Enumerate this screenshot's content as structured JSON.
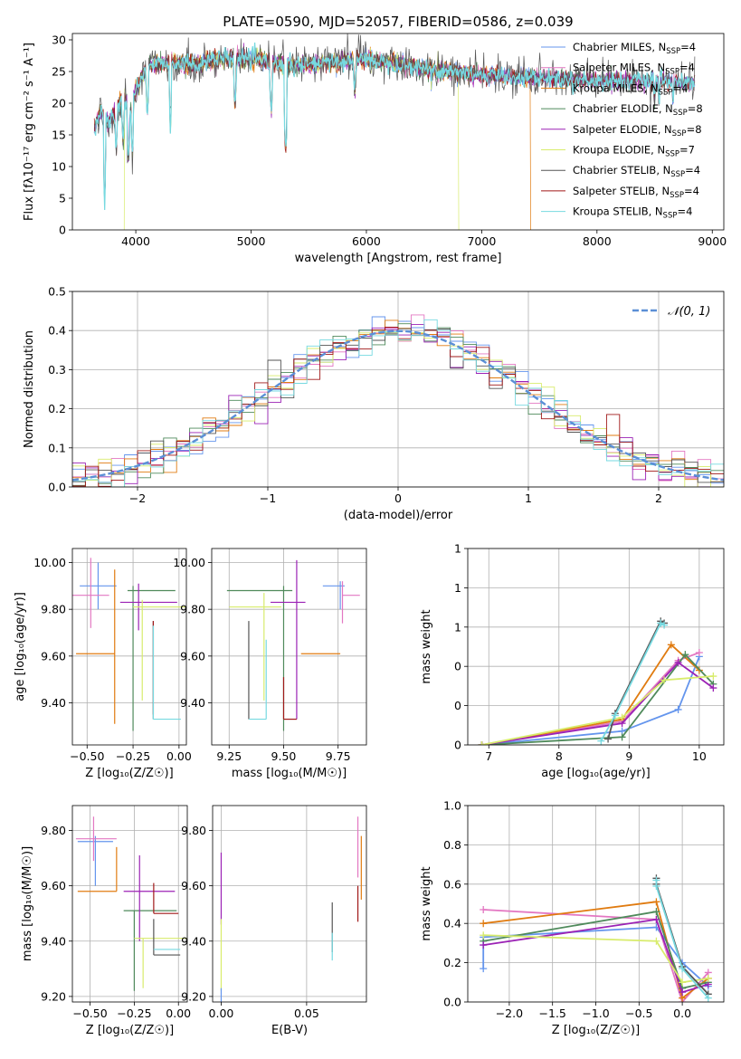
{
  "colors": {
    "chabrier_miles": "#6495ed",
    "salpeter_miles": "#e377c2",
    "kroupa_miles": "#e07b10",
    "chabrier_elodie": "#4f8a5b",
    "salpeter_elodie": "#9b22b5",
    "kroupa_elodie": "#d8ec6c",
    "chabrier_stelib": "#555555",
    "salpeter_stelib": "#a01818",
    "kroupa_stelib": "#76d9e0"
  },
  "chart_data": [
    {
      "type": "line",
      "title": "PLATE=0590, MJD=52057, FIBERID=0586, z=0.039",
      "xlabel": "wavelength [Angstrom, rest frame]",
      "ylabel": "Flux [fλ10⁻¹⁷ erg cm⁻² s⁻¹ A⁻¹]",
      "xlim": [
        3450,
        9100
      ],
      "ylim": [
        0,
        31
      ],
      "xticks": [
        4000,
        5000,
        6000,
        7000,
        8000,
        9000
      ],
      "yticks": [
        0,
        5,
        10,
        15,
        20,
        25,
        30
      ],
      "legend": "right",
      "legend_entries": [
        {
          "label": "Chabrier MILES, N",
          "sub": "SSP",
          "tail": "=4",
          "color_key": "chabrier_miles"
        },
        {
          "label": "Salpeter MILES, N",
          "sub": "SSP",
          "tail": "=4",
          "color_key": "salpeter_miles"
        },
        {
          "label": "Kroupa MILES, N",
          "sub": "SSP",
          "tail": "=4",
          "color_key": "kroupa_miles"
        },
        {
          "label": "Chabrier ELODIE, N",
          "sub": "SSP",
          "tail": "=8",
          "color_key": "chabrier_elodie"
        },
        {
          "label": "Salpeter ELODIE, N",
          "sub": "SSP",
          "tail": "=8",
          "color_key": "salpeter_elodie"
        },
        {
          "label": "Kroupa ELODIE, N",
          "sub": "SSP",
          "tail": "=7",
          "color_key": "kroupa_elodie"
        },
        {
          "label": "Chabrier STELIB, N",
          "sub": "SSP",
          "tail": "=4",
          "color_key": "chabrier_stelib"
        },
        {
          "label": "Salpeter STELIB, N",
          "sub": "SSP",
          "tail": "=4",
          "color_key": "salpeter_stelib"
        },
        {
          "label": "Kroupa STELIB, N",
          "sub": "SSP",
          "tail": "=4",
          "color_key": "kroupa_stelib"
        }
      ],
      "spectrum_anchors": [
        [
          3650,
          16
        ],
        [
          3700,
          19
        ],
        [
          3750,
          17
        ],
        [
          3800,
          18
        ],
        [
          3900,
          21
        ],
        [
          3950,
          19
        ],
        [
          4000,
          22
        ],
        [
          4100,
          26
        ],
        [
          4300,
          26.5
        ],
        [
          4500,
          26
        ],
        [
          4700,
          27
        ],
        [
          5000,
          27
        ],
        [
          5300,
          26
        ],
        [
          5500,
          26
        ],
        [
          6000,
          27
        ],
        [
          6500,
          25.5
        ],
        [
          7000,
          24.5
        ],
        [
          7500,
          24
        ],
        [
          8000,
          23.5
        ],
        [
          8500,
          23.5
        ],
        [
          8850,
          23
        ]
      ],
      "dips": [
        [
          3730,
          5
        ],
        [
          3830,
          12
        ],
        [
          3890,
          13
        ],
        [
          3935,
          11
        ],
        [
          3970,
          12
        ],
        [
          4100,
          18
        ],
        [
          4300,
          16
        ],
        [
          4860,
          19
        ],
        [
          5175,
          18
        ],
        [
          5300,
          12
        ],
        [
          5900,
          21
        ],
        [
          6563,
          23
        ],
        [
          8500,
          20
        ],
        [
          8540,
          20
        ],
        [
          8660,
          20
        ]
      ],
      "model_cutoffs": [
        {
          "color_key": "kroupa_elodie",
          "start": 3900,
          "end": 6800
        },
        {
          "color_key": "kroupa_miles",
          "start": 3540,
          "end": 7420
        }
      ]
    },
    {
      "type": "histogram",
      "xlabel": "(data-model)/error",
      "ylabel": "Normed distribution",
      "xlim": [
        -2.5,
        2.5
      ],
      "ylim": [
        0,
        0.5
      ],
      "xticks": [
        -2,
        -1,
        0,
        1,
        2
      ],
      "yticks": [
        0.0,
        0.1,
        0.2,
        0.3,
        0.4,
        0.5
      ],
      "bin_width": 0.1,
      "legend": "top-right",
      "gaussian_label": "𝒩(0, 1)",
      "gaussian_color": "#5b8fd6"
    },
    {
      "type": "scatter",
      "panel": "age-vs-Z",
      "xlabel": "Z [log₁₀(Z/Z☉)]",
      "ylabel": "age  [log₁₀(age/yr)]",
      "xlim": [
        -0.58,
        0.04
      ],
      "ylim": [
        9.22,
        10.06
      ],
      "xticks": [
        -0.5,
        -0.25,
        0.0
      ],
      "yticks": [
        9.4,
        9.6,
        9.8,
        10.0
      ],
      "points": [
        {
          "color_key": "chabrier_miles",
          "x": -0.44,
          "xerr": [
            0.1,
            0.1
          ],
          "y": 9.9,
          "yerr": [
            0.1,
            0.1
          ]
        },
        {
          "color_key": "salpeter_miles",
          "x": -0.48,
          "xerr": [
            0.1,
            0.1
          ],
          "y": 9.86,
          "yerr": [
            0.14,
            0.16
          ]
        },
        {
          "color_key": "kroupa_miles",
          "x": -0.35,
          "xerr": [
            0.21,
            0.0
          ],
          "y": 9.61,
          "yerr": [
            0.3,
            0.36
          ]
        },
        {
          "color_key": "chabrier_elodie",
          "x": -0.25,
          "xerr": [
            0.03,
            0.23
          ],
          "y": 9.88,
          "yerr": [
            0.6,
            0.02
          ]
        },
        {
          "color_key": "salpeter_elodie",
          "x": -0.22,
          "xerr": [
            0.1,
            0.21
          ],
          "y": 9.83,
          "yerr": [
            0.12,
            0.08
          ]
        },
        {
          "color_key": "kroupa_elodie",
          "x": -0.2,
          "xerr": [
            0.05,
            0.25
          ],
          "y": 9.81,
          "yerr": [
            0.4,
            0.03
          ]
        },
        {
          "color_key": "chabrier_stelib",
          "x": -0.14,
          "xerr": [
            0.0,
            0.0
          ],
          "y": 9.55,
          "yerr": [
            0.22,
            0.2
          ]
        },
        {
          "color_key": "salpeter_stelib",
          "x": -0.14,
          "xerr": [
            0.0,
            0.0
          ],
          "y": 9.55,
          "yerr": [
            0.2,
            0.2
          ]
        },
        {
          "color_key": "kroupa_stelib",
          "x": -0.14,
          "xerr": [
            0.0,
            0.15
          ],
          "y": 9.33,
          "yerr": [
            0.0,
            0.4
          ]
        }
      ]
    },
    {
      "type": "scatter",
      "panel": "age-vs-mass",
      "xlabel": "mass [log₁₀(M/M☉)]",
      "ylabel": "",
      "xlim": [
        9.17,
        9.88
      ],
      "ylim": [
        9.22,
        10.06
      ],
      "xticks": [
        9.25,
        9.5,
        9.75
      ],
      "yticks": [
        9.4,
        9.6,
        9.8,
        10.0
      ],
      "points": [
        {
          "color_key": "chabrier_miles",
          "x": 9.76,
          "xerr": [
            0.08,
            0.02
          ],
          "y": 9.9,
          "yerr": [
            0.1,
            0.02
          ]
        },
        {
          "color_key": "salpeter_miles",
          "x": 9.77,
          "xerr": [
            0.0,
            0.08
          ],
          "y": 9.86,
          "yerr": [
            0.12,
            0.06
          ]
        },
        {
          "color_key": "kroupa_miles",
          "x": 9.6,
          "xerr": [
            0.02,
            0.16
          ],
          "y": 9.61,
          "yerr": [
            0.0,
            0.0
          ]
        },
        {
          "color_key": "chabrier_elodie",
          "x": 9.5,
          "xerr": [
            0.26,
            0.04
          ],
          "y": 9.88,
          "yerr": [
            0.6,
            0.02
          ]
        },
        {
          "color_key": "salpeter_elodie",
          "x": 9.56,
          "xerr": [
            0.12,
            0.04
          ],
          "y": 9.83,
          "yerr": [
            0.5,
            0.18
          ]
        },
        {
          "color_key": "kroupa_elodie",
          "x": 9.41,
          "xerr": [
            0.16,
            0.08
          ],
          "y": 9.81,
          "yerr": [
            0.4,
            0.06
          ]
        },
        {
          "color_key": "chabrier_stelib",
          "x": 9.34,
          "xerr": [
            0.0,
            0.0
          ],
          "y": 9.55,
          "yerr": [
            0.22,
            0.2
          ]
        },
        {
          "color_key": "salpeter_stelib",
          "x": 9.5,
          "xerr": [
            0.0,
            0.06
          ],
          "y": 9.33,
          "yerr": [
            0.0,
            0.18
          ]
        },
        {
          "color_key": "kroupa_stelib",
          "x": 9.42,
          "xerr": [
            0.08,
            0.0
          ],
          "y": 9.33,
          "yerr": [
            0.0,
            0.34
          ]
        }
      ]
    },
    {
      "type": "line",
      "panel": "mass-weight-vs-age",
      "xlabel": "age  [log₁₀(age/yr)]",
      "ylabel": "mass weight",
      "xlim": [
        6.7,
        10.35
      ],
      "ylim": [
        0,
        1.0
      ],
      "xticks": [
        7,
        8,
        9,
        10
      ],
      "yticks": [
        0.0,
        0.2,
        0.4,
        0.6,
        0.8,
        1.0
      ],
      "series": [
        {
          "color_key": "chabrier_miles",
          "x": [
            6.9,
            8.9,
            9.7,
            10.0
          ],
          "y": [
            0.0,
            0.07,
            0.18,
            0.45
          ]
        },
        {
          "color_key": "salpeter_miles",
          "x": [
            6.9,
            8.9,
            9.7,
            10.0
          ],
          "y": [
            0.0,
            0.12,
            0.43,
            0.47
          ]
        },
        {
          "color_key": "kroupa_miles",
          "x": [
            6.9,
            8.9,
            9.6,
            10.0
          ],
          "y": [
            0.0,
            0.13,
            0.51,
            0.38
          ]
        },
        {
          "color_key": "chabrier_elodie",
          "x": [
            6.9,
            8.9,
            9.8,
            10.2
          ],
          "y": [
            0.0,
            0.04,
            0.46,
            0.31
          ]
        },
        {
          "color_key": "salpeter_elodie",
          "x": [
            6.9,
            8.9,
            9.7,
            10.2
          ],
          "y": [
            0.0,
            0.11,
            0.42,
            0.29
          ]
        },
        {
          "color_key": "kroupa_elodie",
          "x": [
            6.9,
            8.9,
            9.5,
            10.2
          ],
          "y": [
            0.0,
            0.14,
            0.33,
            0.35
          ]
        },
        {
          "color_key": "chabrier_stelib",
          "x": [
            8.7,
            8.8,
            9.45,
            9.5
          ],
          "y": [
            0.03,
            0.16,
            0.63,
            0.62
          ]
        },
        {
          "color_key": "kroupa_stelib",
          "x": [
            8.6,
            8.8,
            9.45,
            9.5
          ],
          "y": [
            0.02,
            0.15,
            0.62,
            0.61
          ]
        }
      ]
    },
    {
      "type": "scatter",
      "panel": "mass-vs-Z",
      "xlabel": "Z [log₁₀(Z/Z☉)]",
      "ylabel": "mass [log₁₀(M/M☉)]",
      "xlim": [
        -0.6,
        0.05
      ],
      "ylim": [
        9.18,
        9.89
      ],
      "xticks": [
        -0.5,
        -0.25,
        0.0
      ],
      "yticks": [
        9.2,
        9.4,
        9.6,
        9.8
      ],
      "points": [
        {
          "color_key": "chabrier_miles",
          "x": -0.47,
          "xerr": [
            0.1,
            0.1
          ],
          "y": 9.76,
          "yerr": [
            0.16,
            0.02
          ]
        },
        {
          "color_key": "salpeter_miles",
          "x": -0.48,
          "xerr": [
            0.1,
            0.13
          ],
          "y": 9.77,
          "yerr": [
            0.08,
            0.08
          ]
        },
        {
          "color_key": "kroupa_miles",
          "x": -0.35,
          "xerr": [
            0.22,
            0.0
          ],
          "y": 9.58,
          "yerr": [
            0.0,
            0.16
          ]
        },
        {
          "color_key": "chabrier_elodie",
          "x": -0.25,
          "xerr": [
            0.06,
            0.24
          ],
          "y": 9.51,
          "yerr": [
            0.29,
            0.0
          ]
        },
        {
          "color_key": "salpeter_elodie",
          "x": -0.22,
          "xerr": [
            0.09,
            0.2
          ],
          "y": 9.58,
          "yerr": [
            0.18,
            0.13
          ]
        },
        {
          "color_key": "kroupa_elodie",
          "x": -0.2,
          "xerr": [
            0.05,
            0.25
          ],
          "y": 9.41,
          "yerr": [
            0.18,
            0.0
          ]
        },
        {
          "color_key": "chabrier_stelib",
          "x": -0.14,
          "xerr": [
            0.0,
            0.15
          ],
          "y": 9.35,
          "yerr": [
            0.0,
            0.13
          ]
        },
        {
          "color_key": "salpeter_stelib",
          "x": -0.14,
          "xerr": [
            0.0,
            0.14
          ],
          "y": 9.5,
          "yerr": [
            0.0,
            0.11
          ]
        },
        {
          "color_key": "kroupa_stelib",
          "x": -0.14,
          "xerr": [
            0.0,
            0.15
          ],
          "y": 9.37,
          "yerr": [
            0.0,
            0.0
          ]
        }
      ]
    },
    {
      "type": "scatter",
      "panel": "mass-vs-EBV",
      "xlabel": "E(B-V)",
      "ylabel": "",
      "xlim": [
        -0.005,
        0.085
      ],
      "ylim": [
        9.18,
        9.89
      ],
      "xticks": [
        0.0,
        0.05
      ],
      "yticks": [
        9.2,
        9.4,
        9.6,
        9.8
      ],
      "points": [
        {
          "color_key": "salpeter_elodie",
          "x": 0.0,
          "xerr": [
            0.0,
            0.0
          ],
          "y": 9.56,
          "yerr": [
            0.1,
            0.16
          ]
        },
        {
          "color_key": "kroupa_elodie",
          "x": 0.0,
          "xerr": [
            0.0,
            0.0
          ],
          "y": 9.35,
          "yerr": [
            0.13,
            0.13
          ]
        },
        {
          "color_key": "chabrier_miles",
          "x": 0.0,
          "xerr": [
            0.0,
            0.0
          ],
          "y": 9.21,
          "yerr": [
            0.03,
            0.02
          ]
        },
        {
          "color_key": "salpeter_miles",
          "x": 0.08,
          "xerr": [
            0.0,
            0.0
          ],
          "y": 9.75,
          "yerr": [
            0.12,
            0.1
          ]
        },
        {
          "color_key": "kroupa_miles",
          "x": 0.082,
          "xerr": [
            0.0,
            0.0
          ],
          "y": 9.65,
          "yerr": [
            0.1,
            0.13
          ]
        },
        {
          "color_key": "salpeter_stelib",
          "x": 0.08,
          "xerr": [
            0.0,
            0.0
          ],
          "y": 9.53,
          "yerr": [
            0.06,
            0.07
          ]
        },
        {
          "color_key": "chabrier_stelib",
          "x": 0.065,
          "xerr": [
            0.0,
            0.0
          ],
          "y": 9.46,
          "yerr": [
            0.1,
            0.08
          ]
        },
        {
          "color_key": "kroupa_stelib",
          "x": 0.065,
          "xerr": [
            0.0,
            0.0
          ],
          "y": 9.38,
          "yerr": [
            0.05,
            0.05
          ]
        }
      ]
    },
    {
      "type": "line",
      "panel": "mass-weight-vs-Z",
      "xlabel": "Z [log₁₀(Z/Z☉)]",
      "ylabel": "mass weight",
      "xlim": [
        -2.48,
        0.48
      ],
      "ylim": [
        0,
        1.0
      ],
      "xticks": [
        -2.0,
        -1.5,
        -1.0,
        -0.5,
        0.0
      ],
      "yticks": [
        0.0,
        0.2,
        0.4,
        0.6,
        0.8,
        1.0
      ],
      "series": [
        {
          "color_key": "chabrier_miles",
          "x": [
            -2.3,
            -2.3,
            -0.3,
            0.0,
            0.3
          ],
          "y": [
            0.17,
            0.33,
            0.38,
            0.2,
            0.08
          ]
        },
        {
          "color_key": "salpeter_miles",
          "x": [
            -2.3,
            -0.3,
            0.0,
            0.3
          ],
          "y": [
            0.47,
            0.42,
            0.0,
            0.15
          ]
        },
        {
          "color_key": "kroupa_miles",
          "x": [
            -2.3,
            -0.3,
            0.0,
            0.3
          ],
          "y": [
            0.4,
            0.51,
            0.02,
            0.12
          ]
        },
        {
          "color_key": "chabrier_elodie",
          "x": [
            -2.3,
            -0.3,
            0.0,
            0.3
          ],
          "y": [
            0.31,
            0.46,
            0.07,
            0.1
          ]
        },
        {
          "color_key": "salpeter_elodie",
          "x": [
            -2.3,
            -0.3,
            0.0,
            0.3
          ],
          "y": [
            0.29,
            0.42,
            0.05,
            0.09
          ]
        },
        {
          "color_key": "kroupa_elodie",
          "x": [
            -2.3,
            -0.3,
            0.0,
            0.3
          ],
          "y": [
            0.34,
            0.31,
            0.1,
            0.12
          ]
        },
        {
          "color_key": "chabrier_stelib",
          "x": [
            -0.3,
            -0.3,
            0.0,
            0.3
          ],
          "y": [
            0.63,
            0.6,
            0.18,
            0.04
          ]
        },
        {
          "color_key": "kroupa_stelib",
          "x": [
            -0.3,
            -0.3,
            0.0,
            0.3
          ],
          "y": [
            0.62,
            0.59,
            0.17,
            0.02
          ]
        }
      ]
    }
  ]
}
